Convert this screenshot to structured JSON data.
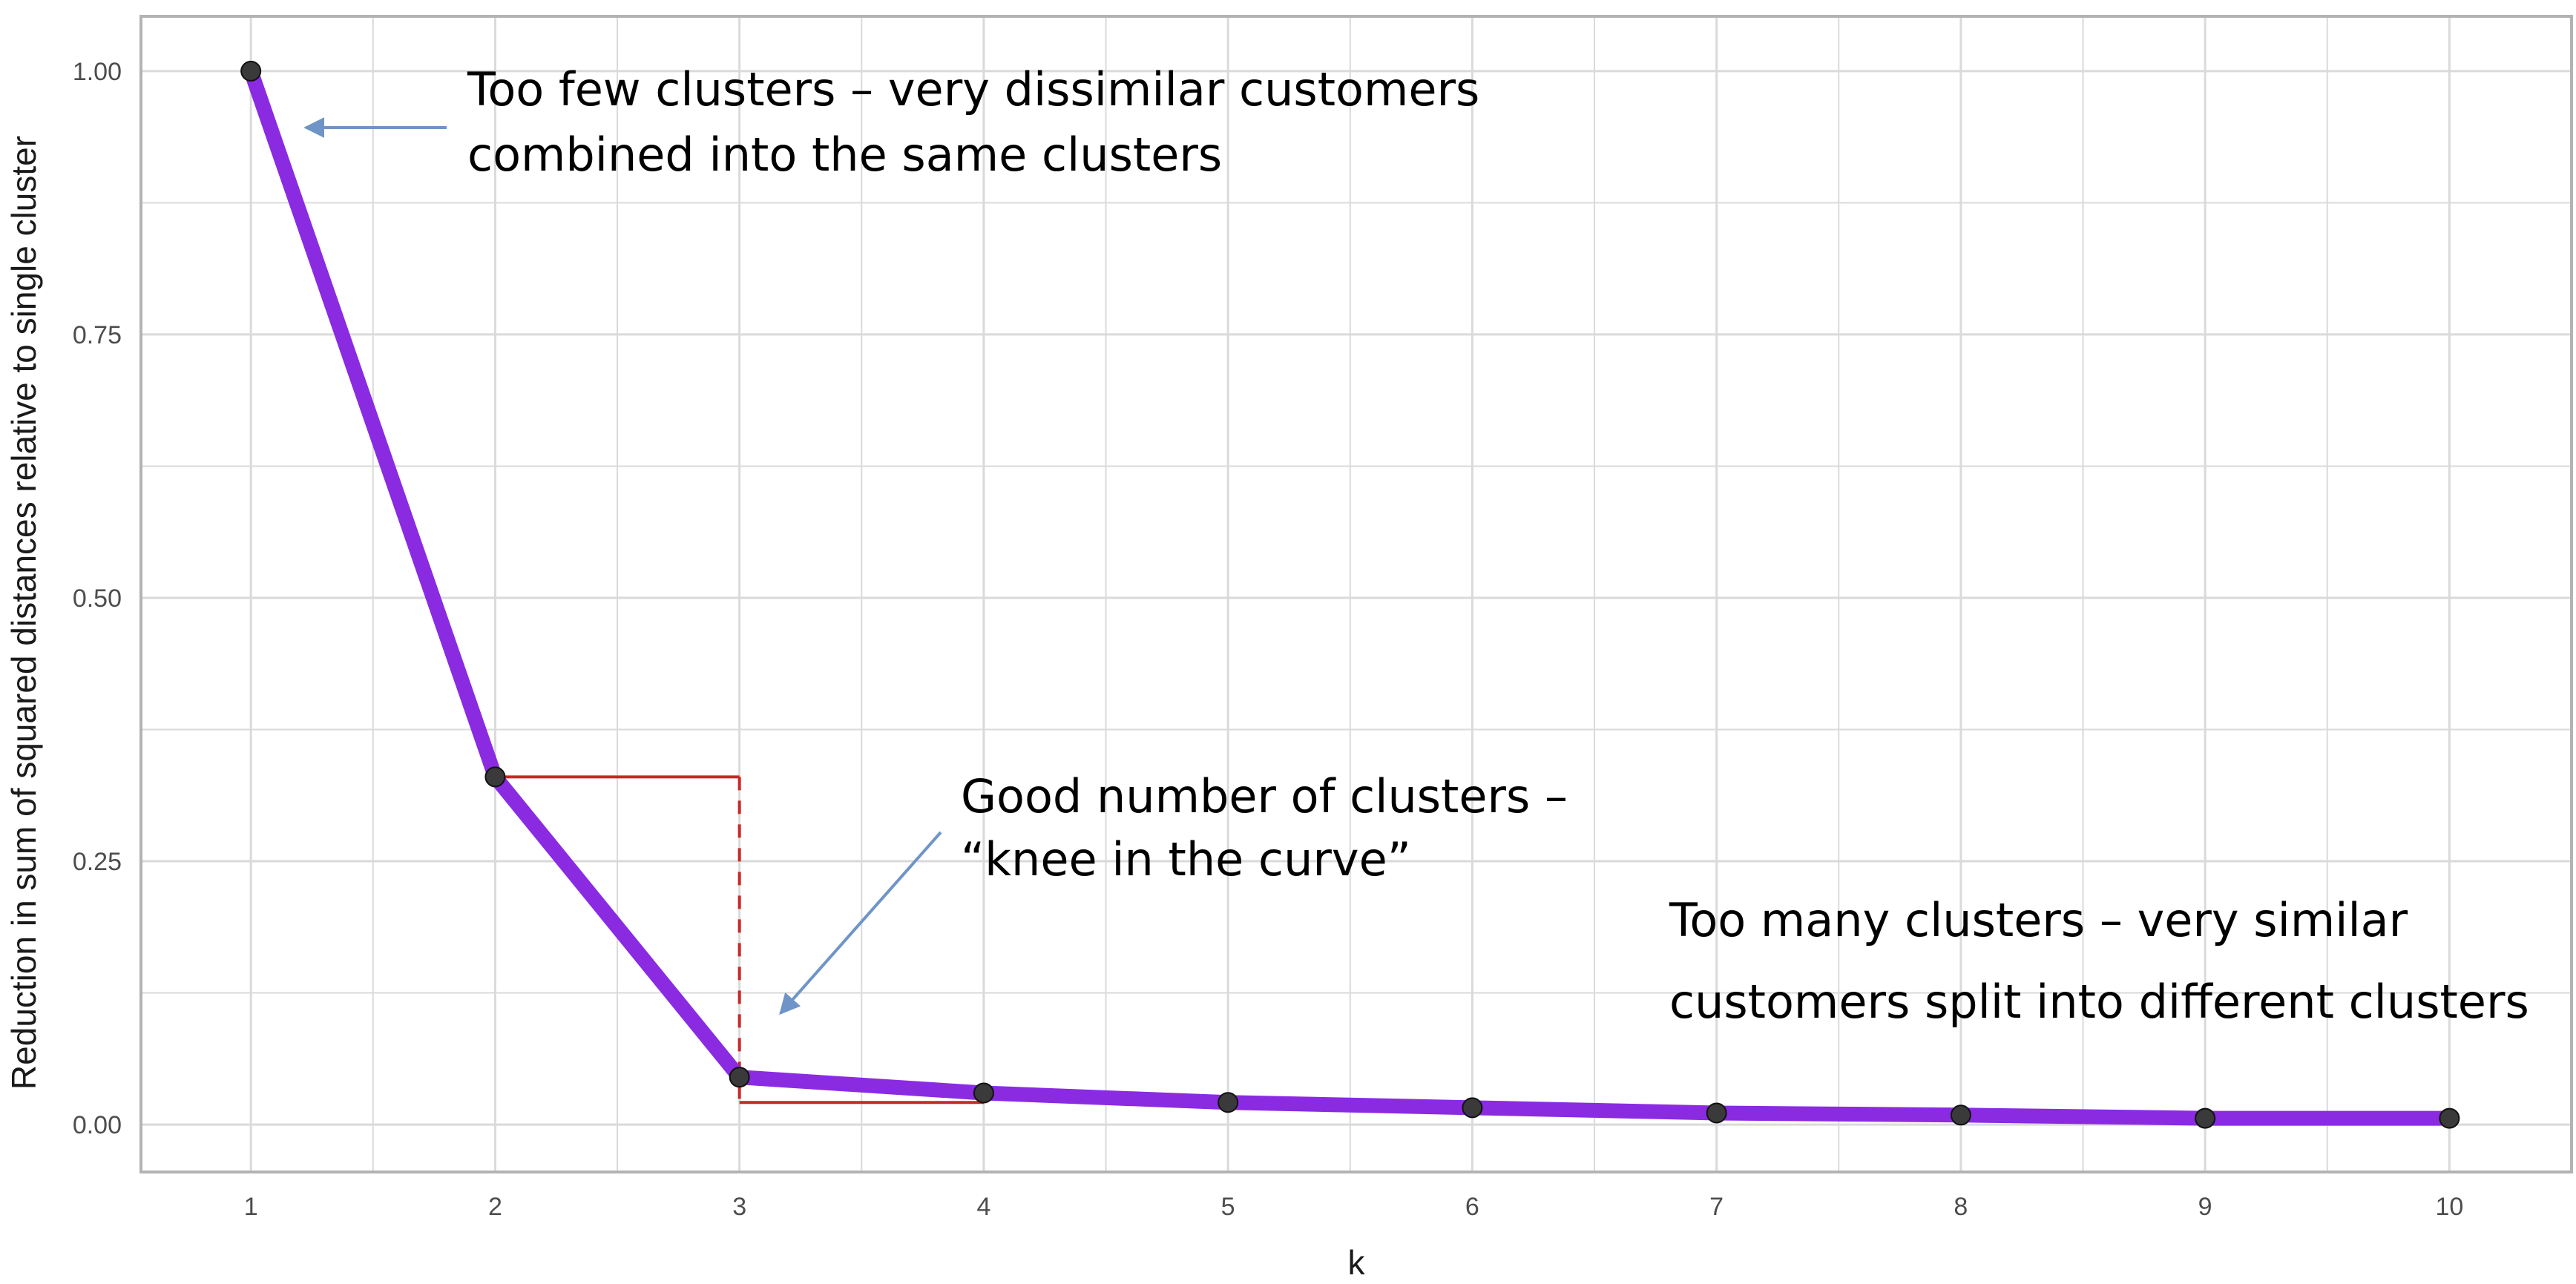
{
  "chart_data": {
    "type": "line",
    "title": "",
    "xlabel": "k",
    "ylabel": "Reduction in sum of squared distances relative to single cluster",
    "x": [
      1,
      2,
      3,
      4,
      5,
      6,
      7,
      8,
      9,
      10
    ],
    "series": [
      {
        "values": [
          1.0,
          0.33,
          0.045,
          0.03,
          0.021,
          0.016,
          0.011,
          0.009,
          0.006,
          0.006
        ]
      }
    ],
    "xlim": [
      0.55,
      10.5
    ],
    "ylim": [
      -0.045,
      1.052
    ],
    "x_ticks": [
      "1",
      "2",
      "3",
      "4",
      "5",
      "6",
      "7",
      "8",
      "9",
      "10"
    ],
    "y_ticks": [
      {
        "value": 0.0,
        "label": "0.00"
      },
      {
        "value": 0.25,
        "label": "0.25"
      },
      {
        "value": 0.5,
        "label": "0.50"
      },
      {
        "value": 0.75,
        "label": "0.75"
      },
      {
        "value": 1.0,
        "label": "1.00"
      }
    ],
    "grid": true,
    "knee_guides": {
      "horizontal_top": {
        "y": 0.33,
        "x_from": 2,
        "x_to": 3
      },
      "horizontal_bottom": {
        "y": 0.021,
        "x_from": 3,
        "x_to": 4
      },
      "vertical_dashed": {
        "x": 3,
        "y_from": 0.33,
        "y_to": 0.021
      }
    },
    "annotations": [
      {
        "id": "few",
        "lines": [
          "Too few clusters – very dissimilar customers",
          "combined into the same clusters"
        ]
      },
      {
        "id": "good",
        "lines": [
          "Good number of clusters –"
        ],
        "highlight": "“knee in the curve”"
      },
      {
        "id": "many",
        "lines": [
          "Too many clusters – very similar",
          "customers split into different clusters"
        ]
      }
    ]
  },
  "colors": {
    "line": "#8a2be2",
    "points": "#3a3a3a",
    "grid": "#dadada",
    "panel_border": "#b3b3b3",
    "guide": "#c62828",
    "arrow": "#6f95c8",
    "highlight_text": "#7a0a0a"
  }
}
